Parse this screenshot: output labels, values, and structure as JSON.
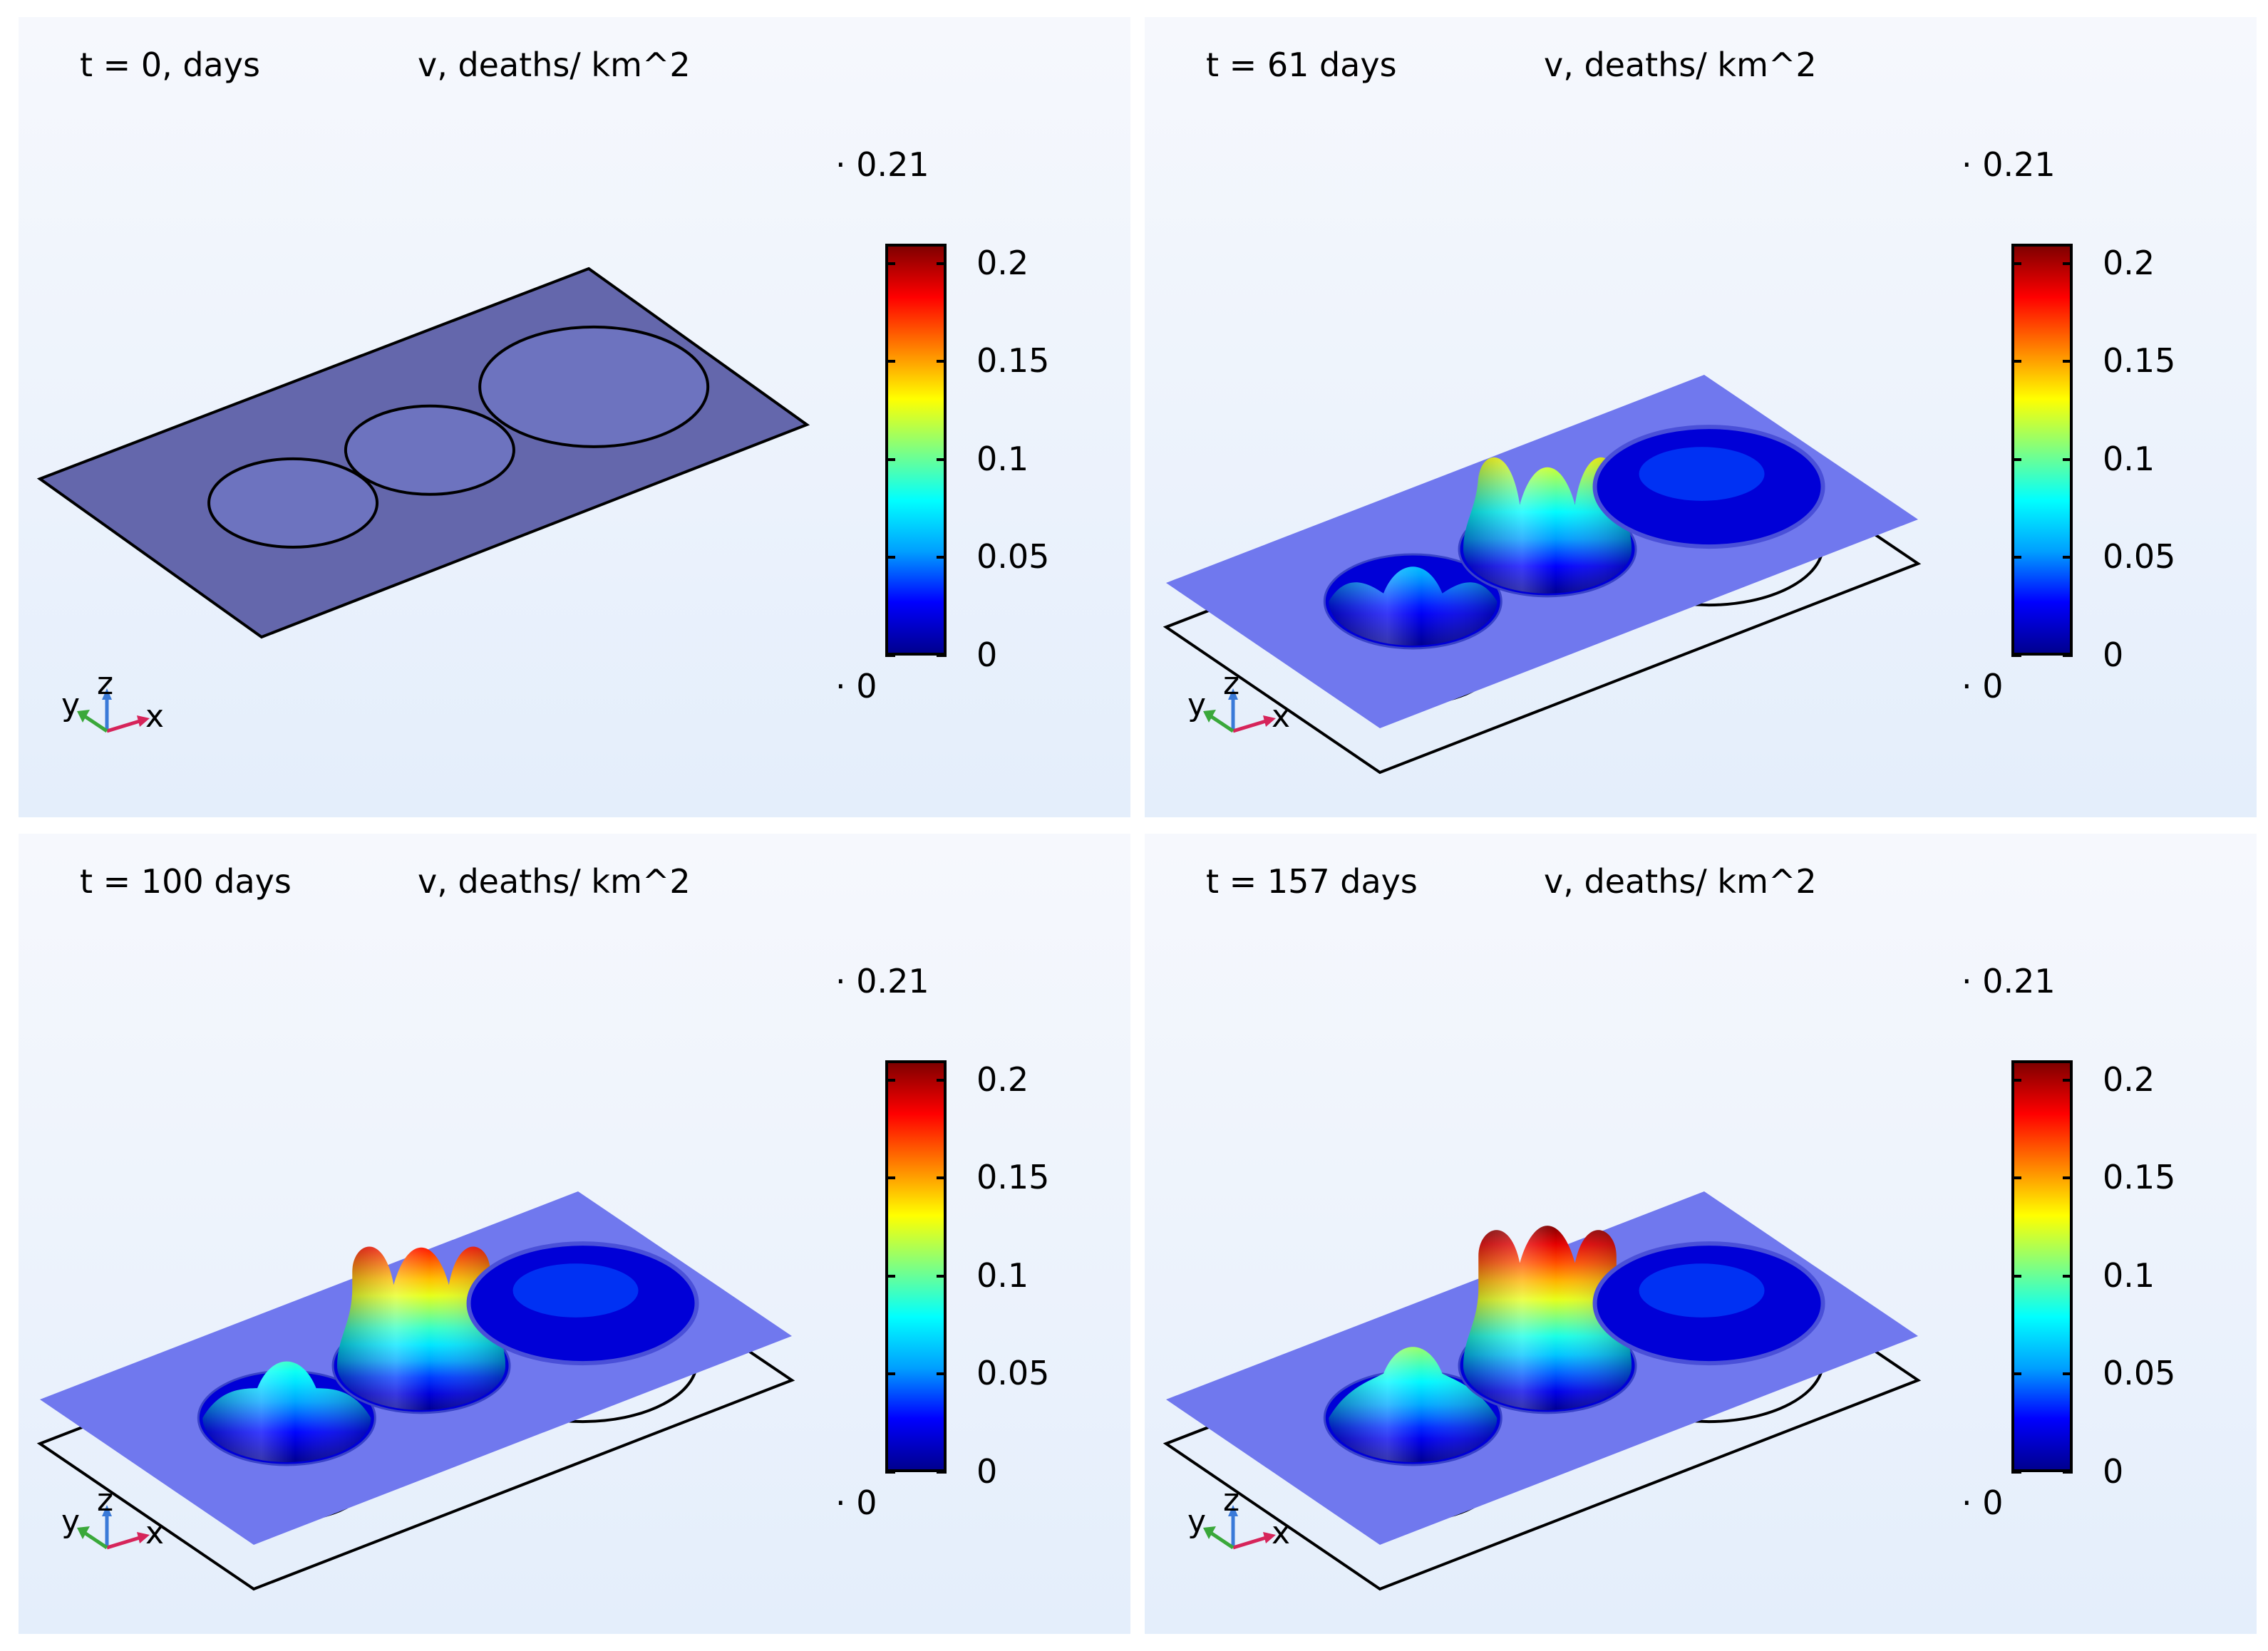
{
  "colors": {
    "colormap": [
      "#00008f",
      "#0000ff",
      "#00a0ff",
      "#00ffff",
      "#80ff80",
      "#ffff00",
      "#ff8000",
      "#ff0000",
      "#800000"
    ],
    "background_top": "#f6f8fd",
    "background_bottom": "#e4eefb",
    "plane_base": "#7078ee",
    "plane_initial": "#6467ac",
    "outline": "#000000"
  },
  "chart_data": [
    {
      "type": "surface3d",
      "time_label": "t = 0, days",
      "variable_label": "v, deaths/ km^2",
      "range_max_label": "0.21",
      "range_min_label": "0",
      "colorbar_ticks": [
        "0.2",
        "0.15",
        "0.1",
        "0.05",
        "0"
      ],
      "colorbar_tick_values": [
        0.2,
        0.15,
        0.1,
        0.05,
        0
      ],
      "clim": [
        0,
        0.21
      ],
      "peaks": [
        {
          "region": "small",
          "value": 0
        },
        {
          "region": "medium",
          "value": 0
        },
        {
          "region": "large",
          "value": 0
        }
      ],
      "axis_labels": {
        "x": "x",
        "y": "y",
        "z": "z"
      }
    },
    {
      "type": "surface3d",
      "time_label": "t = 61 days",
      "variable_label": "v, deaths/ km^2",
      "range_max_label": "0.21",
      "range_min_label": "0",
      "colorbar_ticks": [
        "0.2",
        "0.15",
        "0.1",
        "0.05",
        "0"
      ],
      "colorbar_tick_values": [
        0.2,
        0.15,
        0.1,
        0.05,
        0
      ],
      "clim": [
        0,
        0.21
      ],
      "peaks": [
        {
          "region": "small",
          "value": 0.06
        },
        {
          "region": "medium",
          "value": 0.13
        },
        {
          "region": "large",
          "value": 0.01
        }
      ],
      "axis_labels": {
        "x": "x",
        "y": "y",
        "z": "z"
      }
    },
    {
      "type": "surface3d",
      "time_label": "t = 100 days",
      "variable_label": "v, deaths/ km^2",
      "range_max_label": "0.21",
      "range_min_label": "0",
      "colorbar_ticks": [
        "0.2",
        "0.15",
        "0.1",
        "0.05",
        "0"
      ],
      "colorbar_tick_values": [
        0.2,
        0.15,
        0.1,
        0.05,
        0
      ],
      "clim": [
        0,
        0.21
      ],
      "peaks": [
        {
          "region": "small",
          "value": 0.09
        },
        {
          "region": "medium",
          "value": 0.18
        },
        {
          "region": "large",
          "value": 0.02
        }
      ],
      "axis_labels": {
        "x": "x",
        "y": "y",
        "z": "z"
      }
    },
    {
      "type": "surface3d",
      "time_label": "t = 157 days",
      "variable_label": "v, deaths/ km^2",
      "range_max_label": "0.21",
      "range_min_label": "0",
      "colorbar_ticks": [
        "0.2",
        "0.15",
        "0.1",
        "0.05",
        "0"
      ],
      "colorbar_tick_values": [
        0.2,
        0.15,
        0.1,
        0.05,
        0
      ],
      "clim": [
        0,
        0.21
      ],
      "peaks": [
        {
          "region": "small",
          "value": 0.11
        },
        {
          "region": "medium",
          "value": 0.21
        },
        {
          "region": "large",
          "value": 0.03
        }
      ],
      "axis_labels": {
        "x": "x",
        "y": "y",
        "z": "z"
      }
    }
  ]
}
